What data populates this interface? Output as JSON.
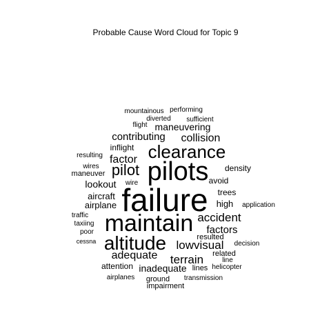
{
  "chart_data": {
    "type": "wordcloud",
    "title": "Probable Cause Word Cloud for Topic 9",
    "text_color": "#000000",
    "background": "#ffffff",
    "words": [
      {
        "text": "failure",
        "weight": 10
      },
      {
        "text": "maintain",
        "weight": 9
      },
      {
        "text": "pilots",
        "weight": 9
      },
      {
        "text": "altitude",
        "weight": 7.5
      },
      {
        "text": "clearance",
        "weight": 7
      },
      {
        "text": "pilot",
        "weight": 5.5
      },
      {
        "text": "lowvisual",
        "weight": 4.5
      },
      {
        "text": "accident",
        "weight": 4.3
      },
      {
        "text": "terrain",
        "weight": 4.3
      },
      {
        "text": "adequate",
        "weight": 4.2
      },
      {
        "text": "collision",
        "weight": 4.2
      },
      {
        "text": "factor",
        "weight": 4.1
      },
      {
        "text": "contributing",
        "weight": 4
      },
      {
        "text": "factors",
        "weight": 4
      },
      {
        "text": "maneuvering",
        "weight": 3.8
      },
      {
        "text": "lookout",
        "weight": 3.8
      },
      {
        "text": "inadequate",
        "weight": 3.8
      },
      {
        "text": "aircraft",
        "weight": 3.4
      },
      {
        "text": "airplane",
        "weight": 3.4
      },
      {
        "text": "high",
        "weight": 3.4
      },
      {
        "text": "avoid",
        "weight": 3.2
      },
      {
        "text": "trees",
        "weight": 3.2
      },
      {
        "text": "density",
        "weight": 3.2
      },
      {
        "text": "inflight",
        "weight": 3.2
      },
      {
        "text": "attention",
        "weight": 3
      },
      {
        "text": "maneuver",
        "weight": 2.8
      },
      {
        "text": "resulting",
        "weight": 2.6
      },
      {
        "text": "wires",
        "weight": 2.6
      },
      {
        "text": "diverted",
        "weight": 2.6
      },
      {
        "text": "ground",
        "weight": 2.6
      },
      {
        "text": "transmission",
        "weight": 2.6
      },
      {
        "text": "impairment",
        "weight": 2.6
      },
      {
        "text": "lines",
        "weight": 2.6
      },
      {
        "text": "related",
        "weight": 2.6
      },
      {
        "text": "resulted",
        "weight": 2.6
      },
      {
        "text": "mountainous",
        "weight": 2.4
      },
      {
        "text": "performing",
        "weight": 2.4
      },
      {
        "text": "flight",
        "weight": 2.4
      },
      {
        "text": "sufficient",
        "weight": 2.4
      },
      {
        "text": "wire",
        "weight": 2.4
      },
      {
        "text": "application",
        "weight": 2.4
      },
      {
        "text": "traffic",
        "weight": 2.4
      },
      {
        "text": "taxiing",
        "weight": 2.4
      },
      {
        "text": "poor",
        "weight": 2.4
      },
      {
        "text": "cessna",
        "weight": 2.2
      },
      {
        "text": "decision",
        "weight": 2.4
      },
      {
        "text": "line",
        "weight": 2.4
      },
      {
        "text": "helicopter",
        "weight": 2.4
      },
      {
        "text": "airplanes",
        "weight": 2.4
      }
    ]
  }
}
